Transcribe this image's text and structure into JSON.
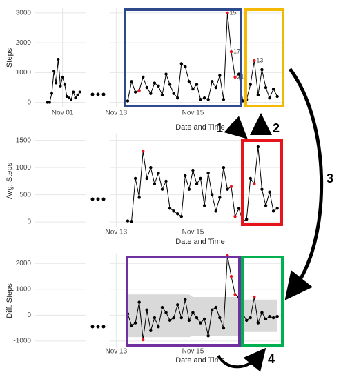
{
  "chart_data": [
    {
      "type": "line",
      "ylabel": "Steps",
      "xlabel": "Date and Time",
      "ylim": [
        -170,
        3160
      ],
      "yticks": [
        0,
        1000,
        2000,
        3000
      ],
      "xlim": [
        12.85,
        17.35
      ],
      "xticks": [
        {
          "value": 13,
          "label": "Nov 13"
        },
        {
          "value": 15,
          "label": "Nov 15"
        }
      ],
      "color": "#000000",
      "x": [
        13.3,
        13.4,
        13.5,
        13.6,
        13.7,
        13.8,
        13.9,
        14.0,
        14.1,
        14.2,
        14.3,
        14.4,
        14.5,
        14.6,
        14.7,
        14.8,
        14.9,
        15.0,
        15.1,
        15.2,
        15.3,
        15.4,
        15.5,
        15.6,
        15.7,
        15.8,
        15.9,
        16.0,
        16.1,
        16.2,
        16.3,
        16.4,
        16.5,
        16.6,
        16.7,
        16.8,
        16.9,
        17.0,
        17.1,
        17.2
      ],
      "values": [
        50,
        700,
        350,
        400,
        850,
        500,
        300,
        650,
        550,
        250,
        950,
        600,
        300,
        150,
        1300,
        1200,
        700,
        450,
        600,
        100,
        150,
        100,
        700,
        500,
        900,
        100,
        3000,
        1700,
        850,
        950,
        50,
        100,
        600,
        1400,
        250,
        1100,
        500,
        150,
        450,
        200
      ],
      "point_colors": [
        "#000",
        "#000",
        "#000",
        "#e8141c",
        "#000",
        "#000",
        "#000",
        "#000",
        "#000",
        "#000",
        "#000",
        "#000",
        "#000",
        "#000",
        "#000",
        "#000",
        "#000",
        "#000",
        "#000",
        "#000",
        "#000",
        "#000",
        "#000",
        "#000",
        "#000",
        "#000",
        "#e8141c",
        "#e8141c",
        "#e8141c",
        "#000",
        "#000",
        "#000",
        "#000",
        "#e8141c",
        "#000",
        "#000",
        "#000",
        "#000",
        "#000",
        "#000"
      ],
      "point_labels": [
        null,
        null,
        null,
        null,
        null,
        null,
        null,
        null,
        null,
        null,
        null,
        null,
        null,
        null,
        null,
        null,
        null,
        null,
        null,
        null,
        null,
        null,
        null,
        null,
        null,
        null,
        "15",
        "17",
        "21",
        null,
        null,
        null,
        null,
        "13",
        null,
        null,
        null,
        null,
        null,
        null
      ],
      "left": {
        "xlim": [
          -0.3,
          2.1
        ],
        "xticks": [
          {
            "value": 1,
            "label": "Nov 01"
          }
        ],
        "x": [
          0.3,
          0.4,
          0.5,
          0.6,
          0.7,
          0.8,
          0.9,
          1.0,
          1.1,
          1.2,
          1.3,
          1.4,
          1.5,
          1.6,
          1.7,
          1.8
        ],
        "values": [
          0,
          0,
          300,
          1050,
          650,
          1450,
          550,
          850,
          600,
          200,
          150,
          100,
          350,
          150,
          250,
          350
        ]
      }
    },
    {
      "type": "line",
      "ylabel": "Avg. Steps",
      "xlabel": "Date and Time",
      "ylim": [
        -100,
        1610
      ],
      "yticks": [
        0,
        500,
        1000,
        1500
      ],
      "xlim": [
        12.85,
        17.35
      ],
      "xticks": [
        {
          "value": 13,
          "label": "Nov 13"
        },
        {
          "value": 15,
          "label": "Nov 15"
        }
      ],
      "color": "#000000",
      "x": [
        13.3,
        13.4,
        13.5,
        13.6,
        13.7,
        13.8,
        13.9,
        14.0,
        14.1,
        14.2,
        14.3,
        14.4,
        14.5,
        14.6,
        14.7,
        14.8,
        14.9,
        15.0,
        15.1,
        15.2,
        15.3,
        15.4,
        15.5,
        15.6,
        15.7,
        15.8,
        15.9,
        16.0,
        16.1,
        16.2,
        16.3,
        16.4,
        16.5,
        16.6,
        16.7,
        16.8,
        16.9,
        17.0,
        17.1,
        17.2
      ],
      "values": [
        20,
        10,
        800,
        450,
        1300,
        800,
        1000,
        700,
        900,
        600,
        750,
        250,
        200,
        150,
        100,
        850,
        600,
        950,
        700,
        800,
        300,
        900,
        500,
        200,
        450,
        1000,
        600,
        650,
        100,
        250,
        10,
        50,
        800,
        700,
        1380,
        600,
        300,
        550,
        200,
        250
      ],
      "point_colors": [
        "#000",
        "#000",
        "#000",
        "#000",
        "#e8141c",
        "#000",
        "#000",
        "#000",
        "#000",
        "#000",
        "#000",
        "#000",
        "#000",
        "#000",
        "#000",
        "#000",
        "#000",
        "#000",
        "#000",
        "#000",
        "#000",
        "#000",
        "#000",
        "#000",
        "#000",
        "#000",
        "#000",
        "#e8141c",
        "#e8141c",
        "#000",
        "#000",
        "#000",
        "#000",
        "#e8141c",
        "#000",
        "#000",
        "#000",
        "#000",
        "#000",
        "#000"
      ]
    },
    {
      "type": "line",
      "ylabel": "Diff. Steps",
      "xlabel": "Date and Time",
      "ylim": [
        -1270,
        2380
      ],
      "yticks": [
        -1000,
        0,
        1000,
        2000
      ],
      "xlim": [
        12.85,
        17.35
      ],
      "xticks": [
        {
          "value": 13,
          "label": "Nov 13"
        },
        {
          "value": 15,
          "label": "Nov 15"
        }
      ],
      "color": "#000000",
      "x": [
        13.3,
        13.4,
        13.5,
        13.6,
        13.7,
        13.8,
        13.9,
        14.0,
        14.1,
        14.2,
        14.3,
        14.4,
        14.5,
        14.6,
        14.7,
        14.8,
        14.9,
        15.0,
        15.1,
        15.2,
        15.3,
        15.4,
        15.5,
        15.6,
        15.7,
        15.8,
        15.9,
        16.0,
        16.1,
        16.2,
        16.3,
        16.4,
        16.5,
        16.6,
        16.7,
        16.8,
        16.9,
        17.0,
        17.1,
        17.2
      ],
      "values": [
        50,
        -400,
        -300,
        500,
        -950,
        200,
        -600,
        -100,
        -450,
        300,
        100,
        -200,
        -100,
        400,
        -100,
        600,
        -200,
        100,
        -100,
        -300,
        -150,
        -800,
        200,
        300,
        -100,
        -500,
        2300,
        1500,
        800,
        700,
        50,
        -200,
        -100,
        700,
        -300,
        100,
        -150,
        -50,
        -100,
        -50
      ],
      "point_colors": [
        "#000",
        "#000",
        "#000",
        "#000",
        "#e8141c",
        "#000",
        "#000",
        "#000",
        "#000",
        "#000",
        "#000",
        "#000",
        "#000",
        "#000",
        "#000",
        "#000",
        "#000",
        "#000",
        "#000",
        "#000",
        "#000",
        "#000",
        "#000",
        "#000",
        "#000",
        "#000",
        "#e8141c",
        "#e8141c",
        "#e8141c",
        "#000",
        "#000",
        "#000",
        "#000",
        "#e8141c",
        "#000",
        "#000",
        "#000",
        "#000",
        "#000",
        "#000"
      ],
      "band": {
        "color": "#d9d9d9",
        "upper": [
          800,
          800,
          800,
          800,
          800,
          800,
          800,
          800,
          800,
          800,
          800,
          800,
          800,
          800,
          800,
          800,
          800,
          700,
          700,
          700,
          700,
          700,
          700,
          700,
          700,
          700,
          700,
          700,
          700,
          700,
          600,
          600,
          600,
          600,
          600,
          600,
          600,
          600,
          600,
          600
        ],
        "lower": [
          -850,
          -850,
          -850,
          -850,
          -850,
          -850,
          -850,
          -850,
          -850,
          -850,
          -850,
          -850,
          -850,
          -850,
          -850,
          -850,
          -850,
          -800,
          -800,
          -800,
          -800,
          -800,
          -800,
          -800,
          -800,
          -800,
          -800,
          -800,
          -800,
          -800,
          -650,
          -650,
          -650,
          -650,
          -650,
          -650,
          -650,
          -650,
          -650,
          -650
        ]
      }
    }
  ],
  "annotations": [
    "1",
    "2",
    "3",
    "4"
  ]
}
